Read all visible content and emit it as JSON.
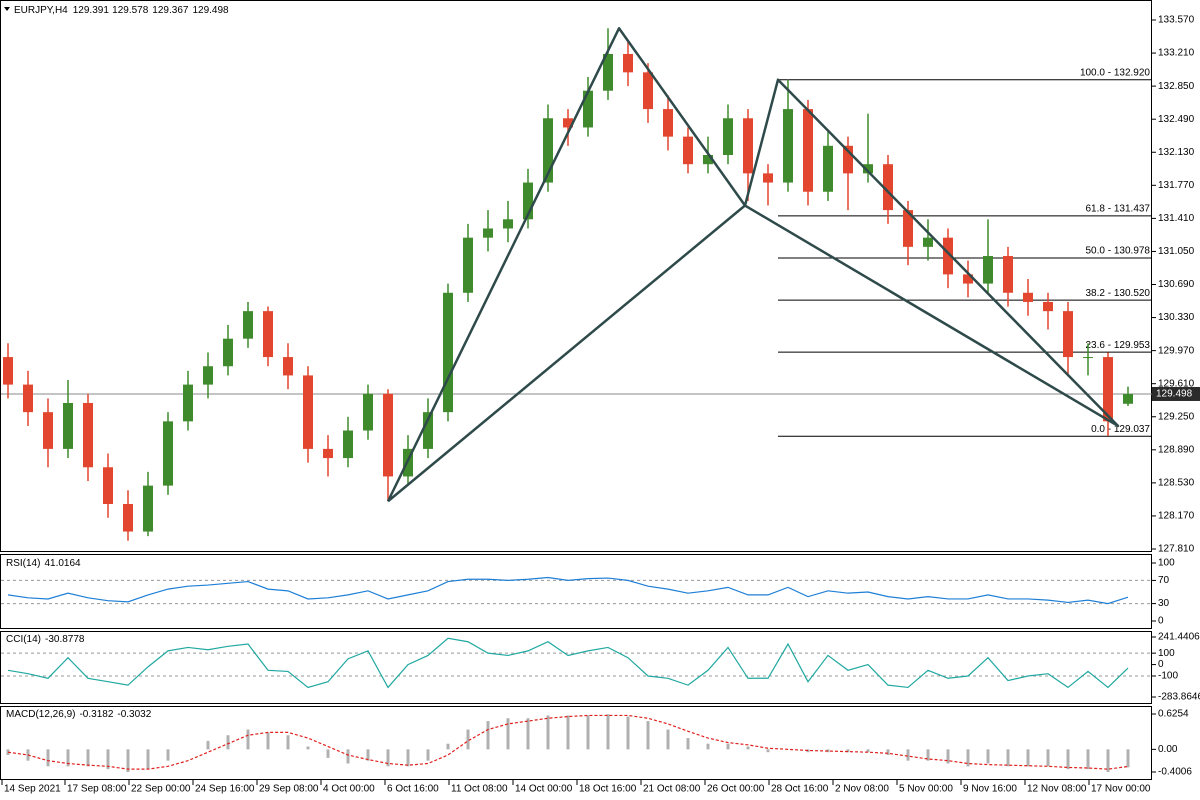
{
  "header": {
    "symbol": "EURJPY,H4"
  },
  "chart_data": [
    {
      "type": "candlestick",
      "up_color": "#3f8a2c",
      "down_color": "#e2462f",
      "open": [
        129.9,
        129.6,
        129.3,
        128.9,
        129.4,
        128.7,
        128.3,
        128.0,
        128.5,
        129.2,
        129.6,
        129.8,
        130.1,
        130.4,
        129.9,
        129.7,
        128.9,
        128.8,
        129.1,
        129.5,
        128.6,
        128.9,
        129.3,
        130.6,
        131.2,
        131.3,
        131.4,
        131.8,
        132.5,
        132.4,
        132.8,
        133.2,
        133.0,
        132.6,
        132.3,
        132.0,
        132.1,
        132.5,
        131.9,
        131.8,
        132.6,
        131.7,
        132.2,
        131.9,
        132.0,
        131.5,
        131.1,
        131.2,
        130.8,
        130.7,
        131.0,
        130.6,
        130.5,
        130.4,
        129.9,
        129.9,
        129.391
      ],
      "high": [
        130.05,
        129.75,
        129.45,
        129.65,
        129.5,
        128.85,
        128.45,
        128.65,
        129.3,
        129.75,
        129.95,
        130.25,
        130.5,
        130.45,
        130.05,
        129.8,
        129.05,
        129.25,
        129.6,
        129.55,
        129.05,
        129.45,
        130.7,
        131.35,
        131.5,
        131.6,
        131.95,
        132.65,
        132.6,
        132.95,
        133.48,
        133.35,
        133.1,
        132.75,
        132.4,
        132.3,
        132.65,
        132.6,
        132.0,
        132.92,
        132.7,
        132.35,
        132.3,
        132.55,
        132.1,
        131.6,
        131.4,
        131.3,
        130.95,
        131.4,
        131.1,
        130.75,
        130.6,
        130.5,
        130.05,
        129.95,
        129.578
      ],
      "low": [
        129.45,
        129.15,
        128.7,
        128.8,
        128.55,
        128.15,
        127.9,
        127.95,
        128.4,
        129.1,
        129.45,
        129.7,
        130.0,
        129.8,
        129.55,
        128.75,
        128.6,
        128.7,
        129.0,
        128.33,
        128.5,
        128.8,
        129.2,
        130.5,
        131.05,
        131.15,
        131.3,
        131.7,
        132.2,
        132.3,
        132.7,
        132.85,
        132.45,
        132.15,
        131.9,
        131.9,
        132.0,
        131.6,
        131.55,
        131.7,
        131.55,
        131.6,
        131.5,
        131.8,
        131.35,
        130.9,
        130.95,
        130.65,
        130.55,
        130.6,
        130.45,
        130.35,
        130.2,
        129.7,
        129.7,
        129.04,
        129.367
      ],
      "close": [
        129.6,
        129.3,
        128.9,
        129.4,
        128.7,
        128.3,
        128.0,
        128.5,
        129.2,
        129.6,
        129.8,
        130.1,
        130.4,
        129.9,
        129.7,
        128.9,
        128.8,
        129.1,
        129.5,
        128.6,
        128.9,
        129.3,
        130.6,
        131.2,
        131.3,
        131.4,
        131.8,
        132.5,
        132.4,
        132.8,
        133.2,
        133.0,
        132.6,
        132.3,
        132.0,
        132.1,
        132.5,
        131.9,
        131.8,
        132.6,
        131.7,
        132.2,
        131.9,
        132.0,
        131.5,
        131.1,
        131.2,
        130.8,
        130.7,
        131.0,
        130.6,
        130.5,
        130.4,
        129.9,
        129.9,
        129.2,
        129.498
      ],
      "ylim": [
        127.81,
        133.57
      ],
      "yticks": [
        {
          "value": 127.81,
          "label": "127.810"
        },
        {
          "value": 128.17,
          "label": "128.170"
        },
        {
          "value": 128.53,
          "label": "128.530"
        },
        {
          "value": 128.89,
          "label": "128.890"
        },
        {
          "value": 129.25,
          "label": "129.250"
        },
        {
          "value": 129.61,
          "label": "129.610"
        },
        {
          "value": 129.97,
          "label": "129.970"
        },
        {
          "value": 130.33,
          "label": "130.330"
        },
        {
          "value": 130.69,
          "label": "130.690"
        },
        {
          "value": 131.05,
          "label": "131.050"
        },
        {
          "value": 131.41,
          "label": "131.410"
        },
        {
          "value": 131.77,
          "label": "131.770"
        },
        {
          "value": 132.13,
          "label": "132.130"
        },
        {
          "value": 132.49,
          "label": "132.490"
        },
        {
          "value": 132.85,
          "label": "132.850"
        },
        {
          "value": 133.21,
          "label": "133.210"
        },
        {
          "value": 133.57,
          "label": "133.570"
        }
      ],
      "xticks": [
        {
          "value": -0.3,
          "label": "14 Sep 2021"
        },
        {
          "value": 2.85,
          "label": "17 Sep 08:00"
        },
        {
          "value": 6.05,
          "label": "22 Sep 00:00"
        },
        {
          "value": 9.25,
          "label": "24 Sep 16:00"
        },
        {
          "value": 12.45,
          "label": "29 Sep 08:00"
        },
        {
          "value": 15.65,
          "label": "4 Oct 00:00"
        },
        {
          "value": 18.85,
          "label": "6 Oct 16:00"
        },
        {
          "value": 22.05,
          "label": "11 Oct 08:00"
        },
        {
          "value": 25.25,
          "label": "14 Oct 00:00"
        },
        {
          "value": 28.45,
          "label": "18 Oct 16:00"
        },
        {
          "value": 31.65,
          "label": "21 Oct 08:00"
        },
        {
          "value": 34.85,
          "label": "26 Oct 00:00"
        },
        {
          "value": 38.05,
          "label": "28 Oct 16:00"
        },
        {
          "value": 41.25,
          "label": "2 Nov 08:00"
        },
        {
          "value": 44.45,
          "label": "5 Nov 00:00"
        },
        {
          "value": 47.65,
          "label": "9 Nov 16:00"
        },
        {
          "value": 50.85,
          "label": "12 Nov 08:00"
        },
        {
          "value": 54.05,
          "label": "17 Nov 00:00"
        }
      ],
      "pattern": {
        "color": "#2f4a4a",
        "points": [
          {
            "x": 19,
            "y": 128.33
          },
          {
            "x": 30.55,
            "y": 133.48
          },
          {
            "x": 36.85,
            "y": 131.55
          },
          {
            "x": 38.5,
            "y": 132.92
          },
          {
            "x": 55.5,
            "y": 129.15
          }
        ]
      },
      "fibonacci": {
        "levels": [
          {
            "value": 132.92,
            "label": "100.0 - 132.920"
          },
          {
            "value": 131.437,
            "label": "61.8 - 131.437"
          },
          {
            "value": 130.978,
            "label": "50.0 - 130.978"
          },
          {
            "value": 130.52,
            "label": "38.2 - 130.520"
          },
          {
            "value": 129.953,
            "label": "23.6 - 129.953"
          },
          {
            "value": 129.037,
            "label": "0.0 - 129.037"
          }
        ]
      }
    },
    {
      "type": "line",
      "title": "RSI(14)",
      "color": "#1e7fd6",
      "values": [
        45,
        40,
        38,
        48,
        40,
        35,
        33,
        45,
        55,
        60,
        62,
        65,
        68,
        55,
        52,
        38,
        40,
        45,
        52,
        38,
        45,
        52,
        68,
        72,
        72,
        70,
        72,
        75,
        70,
        73,
        74,
        70,
        60,
        55,
        48,
        52,
        58,
        45,
        45,
        58,
        42,
        52,
        48,
        50,
        42,
        38,
        42,
        38,
        38,
        45,
        38,
        38,
        36,
        32,
        36,
        30,
        41.0164
      ],
      "ylim": [
        0,
        100
      ],
      "yticks": [
        0,
        30,
        70,
        100
      ],
      "levels": [
        30,
        70
      ]
    },
    {
      "type": "line",
      "title": "CCI(14)",
      "color": "#20a8a0",
      "values": [
        -50,
        -80,
        -120,
        60,
        -120,
        -150,
        -180,
        -20,
        120,
        150,
        130,
        160,
        180,
        -50,
        -60,
        -200,
        -150,
        50,
        120,
        -200,
        0,
        80,
        230,
        200,
        100,
        80,
        120,
        200,
        80,
        120,
        150,
        60,
        -100,
        -120,
        -180,
        -50,
        150,
        -120,
        -120,
        180,
        -150,
        80,
        -50,
        0,
        -180,
        -200,
        -50,
        -120,
        -100,
        60,
        -140,
        -100,
        -80,
        -200,
        -60,
        -200,
        -30.8778
      ],
      "ylim": [
        -283.8646,
        241.4406
      ],
      "yticks": [
        -283.8646,
        -100,
        0,
        100,
        241.4406
      ],
      "levels": [
        100,
        -100
      ]
    },
    {
      "type": "macd",
      "title": "MACD(12,26,9)",
      "color": "#b0b0b0",
      "signal_color": "#e0201c",
      "values": [
        -0.1,
        -0.2,
        -0.3,
        -0.3,
        -0.3,
        -0.35,
        -0.4,
        -0.35,
        -0.2,
        0.0,
        0.15,
        0.25,
        0.35,
        0.3,
        0.25,
        0.05,
        -0.15,
        -0.25,
        -0.2,
        -0.3,
        -0.3,
        -0.2,
        0.1,
        0.35,
        0.5,
        0.55,
        0.55,
        0.6,
        0.6,
        0.6,
        0.62,
        0.58,
        0.5,
        0.35,
        0.2,
        0.1,
        0.1,
        0.05,
        -0.05,
        0.0,
        -0.05,
        -0.05,
        -0.05,
        -0.05,
        -0.1,
        -0.2,
        -0.2,
        -0.25,
        -0.3,
        -0.25,
        -0.3,
        -0.3,
        -0.3,
        -0.35,
        -0.35,
        -0.4,
        -0.3182
      ],
      "signal": [
        -0.05,
        -0.1,
        -0.2,
        -0.25,
        -0.28,
        -0.3,
        -0.35,
        -0.35,
        -0.3,
        -0.2,
        -0.05,
        0.1,
        0.25,
        0.3,
        0.3,
        0.2,
        0.05,
        -0.1,
        -0.18,
        -0.25,
        -0.28,
        -0.25,
        -0.1,
        0.15,
        0.35,
        0.45,
        0.5,
        0.55,
        0.58,
        0.6,
        0.6,
        0.6,
        0.55,
        0.45,
        0.32,
        0.2,
        0.12,
        0.08,
        0.02,
        0.0,
        -0.02,
        -0.03,
        -0.04,
        -0.05,
        -0.07,
        -0.12,
        -0.17,
        -0.2,
        -0.25,
        -0.27,
        -0.28,
        -0.29,
        -0.3,
        -0.32,
        -0.33,
        -0.35,
        -0.3032
      ],
      "ylim": [
        -0.4006,
        0.6254
      ],
      "yticks": [
        -0.4006,
        {
          "value": 0,
          "label": "0.00"
        },
        0.6254
      ]
    }
  ]
}
